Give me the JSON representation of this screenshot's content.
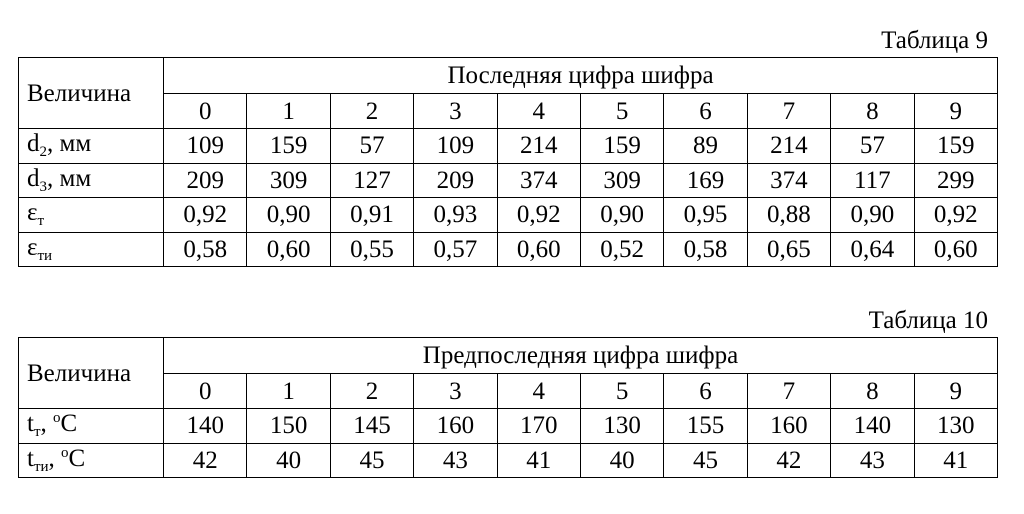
{
  "tables": [
    {
      "caption": "Таблица 9",
      "corner": "Величина",
      "group": "Последняя цифра шифра",
      "columns": [
        "0",
        "1",
        "2",
        "3",
        "4",
        "5",
        "6",
        "7",
        "8",
        "9"
      ],
      "rows": [
        {
          "label": [
            {
              "text": "d"
            },
            {
              "text": "2",
              "style": "sub"
            },
            {
              "text": ", мм"
            }
          ],
          "cells": [
            "109",
            "159",
            "57",
            "109",
            "214",
            "159",
            "89",
            "214",
            "57",
            "159"
          ]
        },
        {
          "label": [
            {
              "text": "d"
            },
            {
              "text": "3",
              "style": "sub"
            },
            {
              "text": ", мм"
            }
          ],
          "cells": [
            "209",
            "309",
            "127",
            "209",
            "374",
            "309",
            "169",
            "374",
            "117",
            "299"
          ]
        },
        {
          "label": [
            {
              "text": "ε"
            },
            {
              "text": "т",
              "style": "sub"
            }
          ],
          "cells": [
            "0,92",
            "0,90",
            "0,91",
            "0,93",
            "0,92",
            "0,90",
            "0,95",
            "0,88",
            "0,90",
            "0,92"
          ]
        },
        {
          "label": [
            {
              "text": "ε"
            },
            {
              "text": "ти",
              "style": "sub"
            }
          ],
          "cells": [
            "0,58",
            "0,60",
            "0,55",
            "0,57",
            "0,60",
            "0,52",
            "0,58",
            "0,65",
            "0,64",
            "0,60"
          ]
        }
      ]
    },
    {
      "caption": "Таблица 10",
      "corner": "Величина",
      "group": "Предпоследняя цифра шифра",
      "columns": [
        "0",
        "1",
        "2",
        "3",
        "4",
        "5",
        "6",
        "7",
        "8",
        "9"
      ],
      "rows": [
        {
          "label": [
            {
              "text": "t"
            },
            {
              "text": "т",
              "style": "sub"
            },
            {
              "text": ", "
            },
            {
              "text": "o",
              "style": "sup"
            },
            {
              "text": "C"
            }
          ],
          "cells": [
            "140",
            "150",
            "145",
            "160",
            "170",
            "130",
            "155",
            "160",
            "140",
            "130"
          ]
        },
        {
          "label": [
            {
              "text": "t"
            },
            {
              "text": "ти",
              "style": "sub"
            },
            {
              "text": ", "
            },
            {
              "text": "o",
              "style": "sup"
            },
            {
              "text": "C"
            }
          ],
          "cells": [
            "42",
            "40",
            "45",
            "43",
            "41",
            "40",
            "45",
            "42",
            "43",
            "41"
          ]
        }
      ]
    }
  ]
}
